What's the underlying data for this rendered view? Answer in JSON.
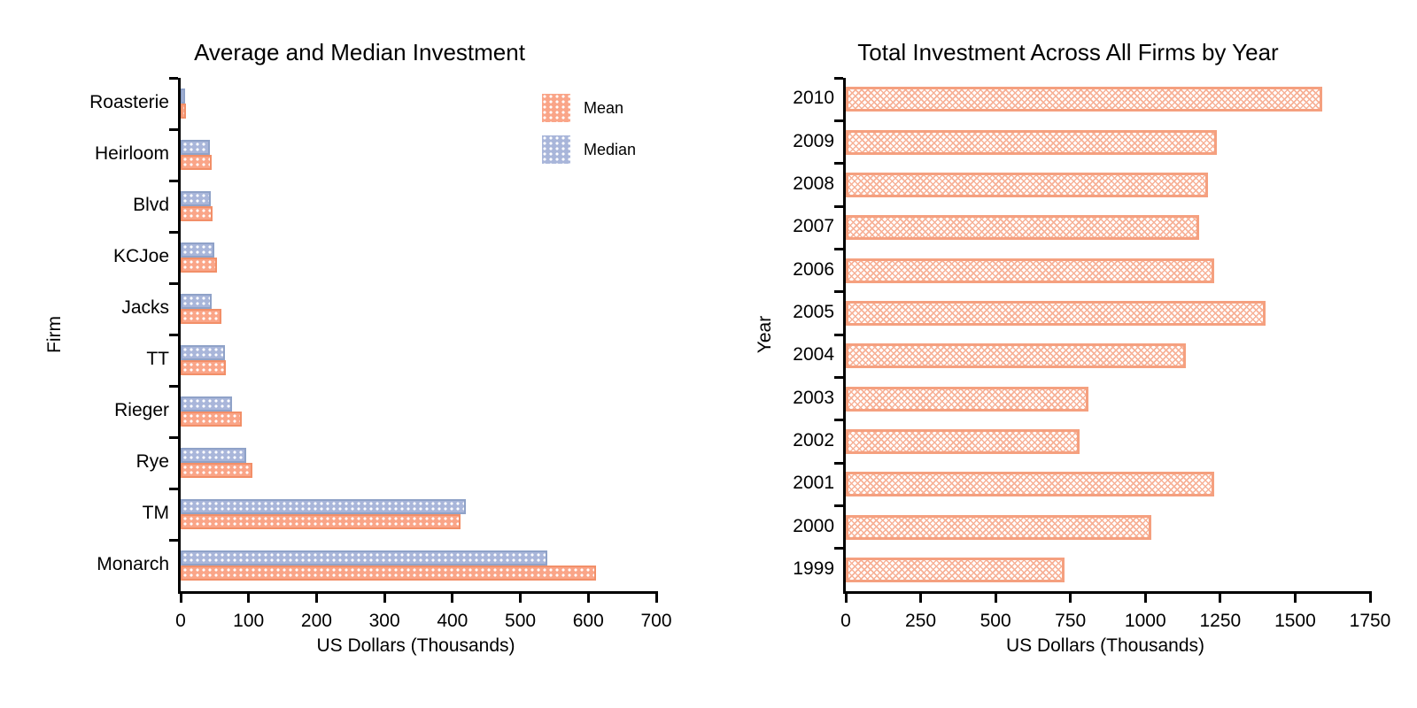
{
  "figure": {
    "background": "#ffffff",
    "text_color": "#000000"
  },
  "chart_data": [
    {
      "type": "bar",
      "orientation": "horizontal",
      "title": "Average and Median Investment",
      "xlabel": "US Dollars (Thousands)",
      "ylabel": "Firm",
      "categories": [
        "Roasterie",
        "Heirloom",
        "Blvd",
        "KCJoe",
        "Jacks",
        "TT",
        "Rieger",
        "Rye",
        "TM",
        "Monarch"
      ],
      "series": [
        {
          "name": "Mean",
          "hatch": "dots",
          "fill": "#FAA588",
          "edge": "#F28F68",
          "values": [
            8,
            46,
            47,
            53,
            60,
            67,
            90,
            106,
            412,
            612
          ]
        },
        {
          "name": "Median",
          "hatch": "dots",
          "fill": "#A9B6DA",
          "edge": "#8FA2C8",
          "values": [
            6,
            43,
            44,
            49,
            46,
            65,
            76,
            97,
            420,
            540
          ]
        }
      ],
      "group_order_top_to_bottom": [
        "Median",
        "Mean"
      ],
      "xlim": [
        0,
        700
      ],
      "xticks": [
        0,
        100,
        200,
        300,
        400,
        500,
        600,
        700
      ],
      "grid": false,
      "legend": {
        "location": "upper right",
        "entries": [
          "Mean",
          "Median"
        ]
      }
    },
    {
      "type": "bar",
      "orientation": "horizontal",
      "title": "Total Investment Across All Firms by Year",
      "xlabel": "US Dollars (Thousands)",
      "ylabel": "Year",
      "categories": [
        "2010",
        "2009",
        "2008",
        "2007",
        "2006",
        "2005",
        "2004",
        "2003",
        "2002",
        "2001",
        "2000",
        "1999"
      ],
      "values": [
        1590,
        1240,
        1210,
        1180,
        1230,
        1400,
        1135,
        810,
        780,
        1230,
        1020,
        730
      ],
      "bar_style": {
        "hatch": "cross",
        "fill": "#FFFFFF",
        "edge": "#F5A07F",
        "hatch_color": "#F7B197"
      },
      "xlim": [
        0,
        1750
      ],
      "xticks": [
        0,
        250,
        500,
        750,
        1000,
        1250,
        1500,
        1750
      ],
      "grid": false,
      "legend": null
    }
  ]
}
